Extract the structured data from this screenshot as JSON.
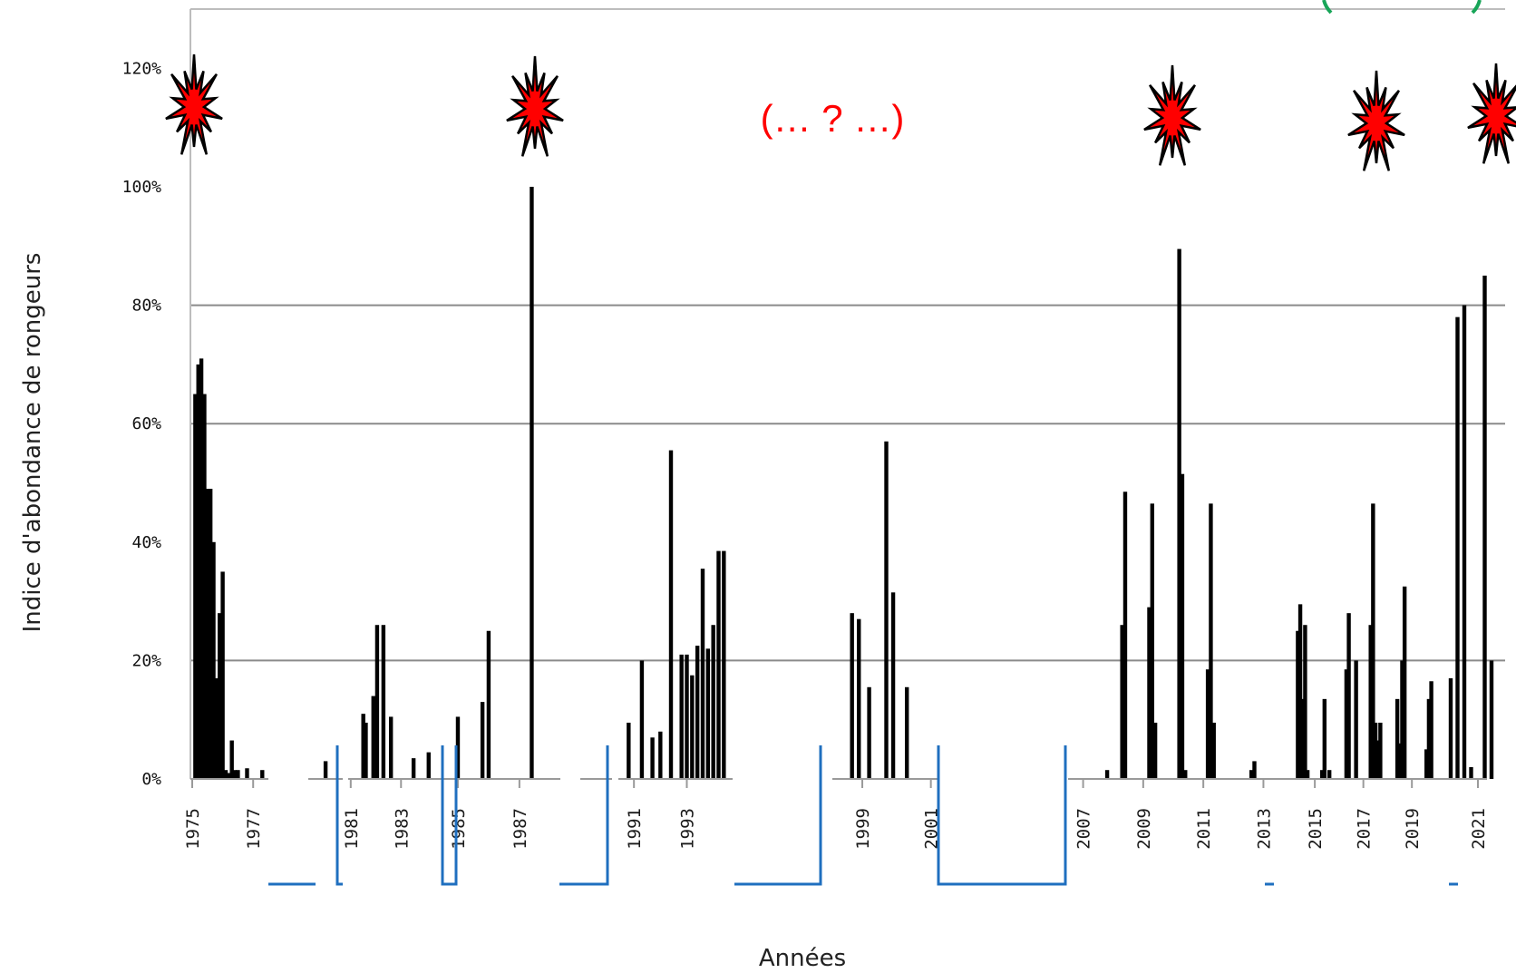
{
  "chart_data": {
    "type": "bar",
    "xlabel": "Années",
    "ylabel": "Indice d'abondance de rongeurs",
    "ylim": [
      0,
      1.2
    ],
    "y_tick_labels": [
      "0%",
      "20%",
      "40%",
      "60%",
      "80%",
      "100%",
      "120%"
    ],
    "y_ticks": [
      0,
      0.2,
      0.4,
      0.6,
      0.8,
      1.0,
      1.2
    ],
    "gridlines_at": [
      0.2,
      0.6,
      0.8
    ],
    "x_tick_labels": [
      "1975",
      "1977",
      "1981",
      "1983",
      "1985",
      "1987",
      "1991",
      "1993",
      "1999",
      "2001",
      "2007",
      "2009",
      "2011",
      "2013",
      "2015",
      "2017",
      "2019",
      "2021"
    ],
    "annotation_text": "(… ? …)",
    "outbreak_markers": [
      "1975",
      "1988",
      "2010",
      "2018",
      "2021"
    ],
    "series": [
      {
        "x": [
          1975.1,
          1975.2,
          1975.3,
          1975.4,
          1975.5,
          1975.6,
          1975.7,
          1975.8,
          1975.9,
          1976.0,
          1976.1,
          1976.2,
          1976.3,
          1976.4,
          1976.5,
          1976.8,
          1977.3,
          1980.0,
          1981.5,
          1981.6,
          1981.9,
          1982.05,
          1982.3,
          1982.6,
          1983.5,
          1984.1,
          1985.0,
          1985.8,
          1986.0,
          1987.4,
          1990.8,
          1991.3,
          1991.7,
          1992.0,
          1992.4,
          1992.8,
          1993.0,
          1993.2,
          1993.4,
          1993.6,
          1993.8,
          1994.0,
          1994.2,
          1994.4,
          1998.7,
          1998.9,
          1999.2,
          1999.7,
          1999.9,
          2000.3,
          2007.8,
          2008.3,
          2008.4,
          2009.2,
          2009.3,
          2009.4,
          2010.2,
          2010.3,
          2010.4,
          2011.15,
          2011.25,
          2011.35,
          2012.6,
          2012.7,
          2014.3,
          2014.4,
          2014.5,
          2014.6,
          2014.7,
          2015.3,
          2015.4,
          2015.6,
          2016.3,
          2016.4,
          2016.7,
          2017.3,
          2017.4,
          2017.5,
          2017.6,
          2017.7,
          2018.4,
          2018.5,
          2018.6,
          2018.7,
          2019.6,
          2019.7,
          2019.8,
          2020.6,
          2020.7,
          2020.8,
          2020.9,
          2021.1,
          2021.2
        ]
      },
      {
        "values": [
          0.65,
          0.7,
          0.71,
          0.65,
          0.49,
          0.49,
          0.4,
          0.17,
          0.28,
          0.35,
          0.015,
          0.01,
          0.065,
          0.015,
          0.015,
          0.018,
          0.015,
          0.03,
          0.11,
          0.095,
          0.14,
          0.26,
          0.26,
          0.105,
          0.035,
          0.045,
          0.105,
          0.13,
          0.25,
          1.0,
          0.095,
          0.2,
          0.07,
          0.08,
          0.555,
          0.21,
          0.21,
          0.175,
          0.225,
          0.355,
          0.22,
          0.26,
          0.385,
          0.385,
          0.28,
          0.27,
          0.155,
          0.57,
          0.315,
          0.155,
          0.015,
          0.26,
          0.485,
          0.29,
          0.465,
          0.095,
          0.895,
          0.515,
          0.015,
          0.185,
          0.465,
          0.095,
          0.015,
          0.03,
          0.25,
          0.295,
          0.135,
          0.26,
          0.015,
          0.015,
          0.135,
          0.015,
          0.185,
          0.28,
          0.2,
          0.26,
          0.465,
          0.095,
          0.065,
          0.095,
          0.135,
          0.06,
          0.2,
          0.325,
          0.05,
          0.135,
          0.165,
          0.17,
          0.78,
          0.8,
          0.02,
          0.85,
          0.2
        ]
      }
    ]
  }
}
